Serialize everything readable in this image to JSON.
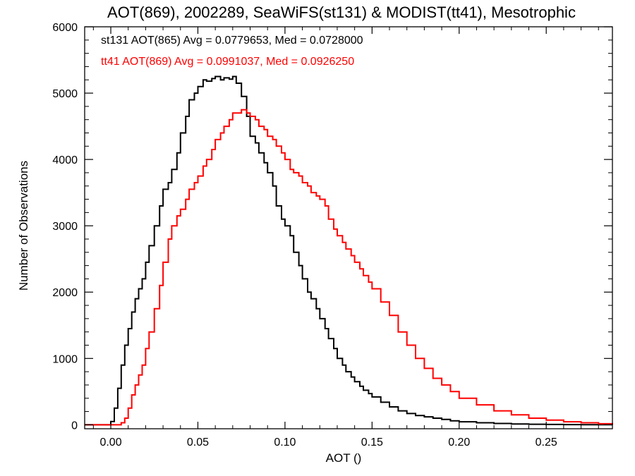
{
  "chart_data": {
    "type": "line",
    "title": "AOT(869), 2002289, SeaWiFS(st131) & MODIST(tt41), Mesotrophic",
    "xlabel": "AOT ()",
    "ylabel": "Number of Observations",
    "xlim": [
      -0.015,
      0.288
    ],
    "ylim": [
      -60,
      6000
    ],
    "xticks": [
      0.0,
      0.05,
      0.1,
      0.15,
      0.2,
      0.25
    ],
    "xtick_labels": [
      "0.00",
      "0.05",
      "0.10",
      "0.15",
      "0.20",
      "0.25"
    ],
    "yticks": [
      0,
      1000,
      2000,
      3000,
      4000,
      5000,
      6000
    ],
    "ytick_labels": [
      "0",
      "1000",
      "2000",
      "3000",
      "4000",
      "5000",
      "6000"
    ],
    "step_style": "histogram",
    "grid": false,
    "annotations": [
      {
        "text": "st131 AOT(865) Avg = 0.0779653, Med = 0.0728000",
        "color": "#000000"
      },
      {
        "text": "tt41 AOT(869) Avg = 0.0991037, Med = 0.0926250",
        "color": "#ff0000"
      }
    ],
    "series": [
      {
        "color": "#000000",
        "x": [
          -0.015,
          -0.002,
          0.0,
          0.002,
          0.004,
          0.006,
          0.008,
          0.01,
          0.012,
          0.014,
          0.016,
          0.018,
          0.02,
          0.022,
          0.025,
          0.028,
          0.03,
          0.033,
          0.035,
          0.038,
          0.04,
          0.043,
          0.045,
          0.048,
          0.05,
          0.053,
          0.055,
          0.058,
          0.06,
          0.063,
          0.065,
          0.068,
          0.07,
          0.072,
          0.075,
          0.078,
          0.08,
          0.083,
          0.085,
          0.088,
          0.09,
          0.093,
          0.095,
          0.098,
          0.1,
          0.103,
          0.105,
          0.108,
          0.11,
          0.113,
          0.115,
          0.118,
          0.12,
          0.123,
          0.125,
          0.128,
          0.13,
          0.133,
          0.135,
          0.138,
          0.14,
          0.143,
          0.145,
          0.148,
          0.15,
          0.155,
          0.16,
          0.165,
          0.17,
          0.175,
          0.18,
          0.185,
          0.19,
          0.195,
          0.2,
          0.21,
          0.22,
          0.23,
          0.24,
          0.25,
          0.26,
          0.27,
          0.28,
          0.288
        ],
        "y": [
          0,
          0,
          50,
          250,
          550,
          900,
          1200,
          1450,
          1700,
          1900,
          2050,
          2200,
          2450,
          2700,
          3000,
          3300,
          3550,
          3650,
          3850,
          4100,
          4400,
          4650,
          4900,
          5000,
          5100,
          5200,
          5180,
          5220,
          5250,
          5200,
          5230,
          5210,
          5250,
          5150,
          4950,
          4650,
          4350,
          4250,
          4100,
          3950,
          3800,
          3600,
          3300,
          3100,
          3000,
          2850,
          2600,
          2400,
          2200,
          2000,
          1900,
          1750,
          1600,
          1450,
          1300,
          1150,
          1000,
          900,
          800,
          720,
          650,
          580,
          520,
          470,
          420,
          340,
          270,
          210,
          170,
          140,
          120,
          100,
          80,
          60,
          45,
          30,
          20,
          12,
          8,
          5,
          3,
          2,
          1,
          0
        ]
      },
      {
        "color": "#ff0000",
        "x": [
          -0.015,
          0.004,
          0.006,
          0.008,
          0.01,
          0.012,
          0.014,
          0.016,
          0.018,
          0.02,
          0.022,
          0.025,
          0.028,
          0.03,
          0.033,
          0.035,
          0.038,
          0.04,
          0.043,
          0.045,
          0.048,
          0.05,
          0.053,
          0.055,
          0.058,
          0.06,
          0.063,
          0.065,
          0.068,
          0.07,
          0.073,
          0.075,
          0.078,
          0.08,
          0.083,
          0.085,
          0.088,
          0.09,
          0.093,
          0.095,
          0.098,
          0.1,
          0.103,
          0.105,
          0.108,
          0.11,
          0.113,
          0.115,
          0.118,
          0.12,
          0.123,
          0.125,
          0.128,
          0.13,
          0.133,
          0.135,
          0.138,
          0.14,
          0.143,
          0.145,
          0.148,
          0.15,
          0.155,
          0.16,
          0.165,
          0.17,
          0.175,
          0.18,
          0.185,
          0.19,
          0.195,
          0.2,
          0.21,
          0.22,
          0.23,
          0.24,
          0.25,
          0.26,
          0.27,
          0.28,
          0.288
        ],
        "y": [
          0,
          0,
          30,
          100,
          250,
          450,
          600,
          750,
          900,
          1150,
          1400,
          1750,
          2100,
          2450,
          2800,
          3000,
          3150,
          3250,
          3400,
          3550,
          3650,
          3750,
          3900,
          4000,
          4150,
          4300,
          4400,
          4500,
          4600,
          4700,
          4700,
          4750,
          4700,
          4650,
          4600,
          4500,
          4450,
          4350,
          4300,
          4200,
          4100,
          4000,
          3850,
          3800,
          3750,
          3650,
          3600,
          3500,
          3450,
          3400,
          3300,
          3100,
          2950,
          2850,
          2750,
          2650,
          2550,
          2450,
          2350,
          2250,
          2150,
          2050,
          1850,
          1650,
          1400,
          1200,
          1000,
          850,
          700,
          600,
          500,
          400,
          300,
          210,
          150,
          100,
          70,
          45,
          30,
          15,
          5
        ]
      }
    ]
  }
}
